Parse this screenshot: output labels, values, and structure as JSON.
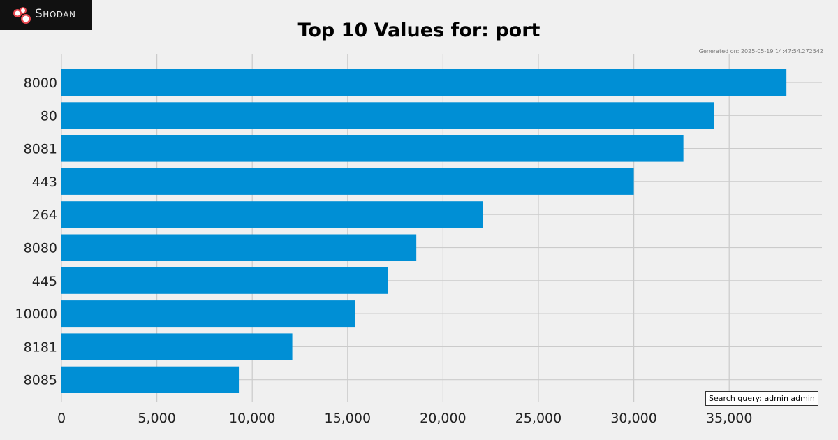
{
  "brand": {
    "name": "Shodan",
    "icon": "shodan-logo-icon"
  },
  "generated": "Generated on: 2025-05-19 14:47:54.272542",
  "query": "Search query: admin admin",
  "chart_data": {
    "type": "bar",
    "orientation": "horizontal",
    "title": "Top 10 Values for: port",
    "categories": [
      "8000",
      "80",
      "8081",
      "443",
      "264",
      "8080",
      "445",
      "10000",
      "8181",
      "8085"
    ],
    "values": [
      38000,
      34200,
      32600,
      30000,
      22100,
      18600,
      17100,
      15400,
      12100,
      9300
    ],
    "xlim": [
      0,
      40000
    ],
    "xticks": [
      0,
      5000,
      10000,
      15000,
      20000,
      25000,
      30000,
      35000
    ],
    "xtick_labels": [
      "0",
      "5,000",
      "10,000",
      "15,000",
      "20,000",
      "25,000",
      "30,000",
      "35,000"
    ],
    "grid": true,
    "bar_color": "#008fd5"
  }
}
